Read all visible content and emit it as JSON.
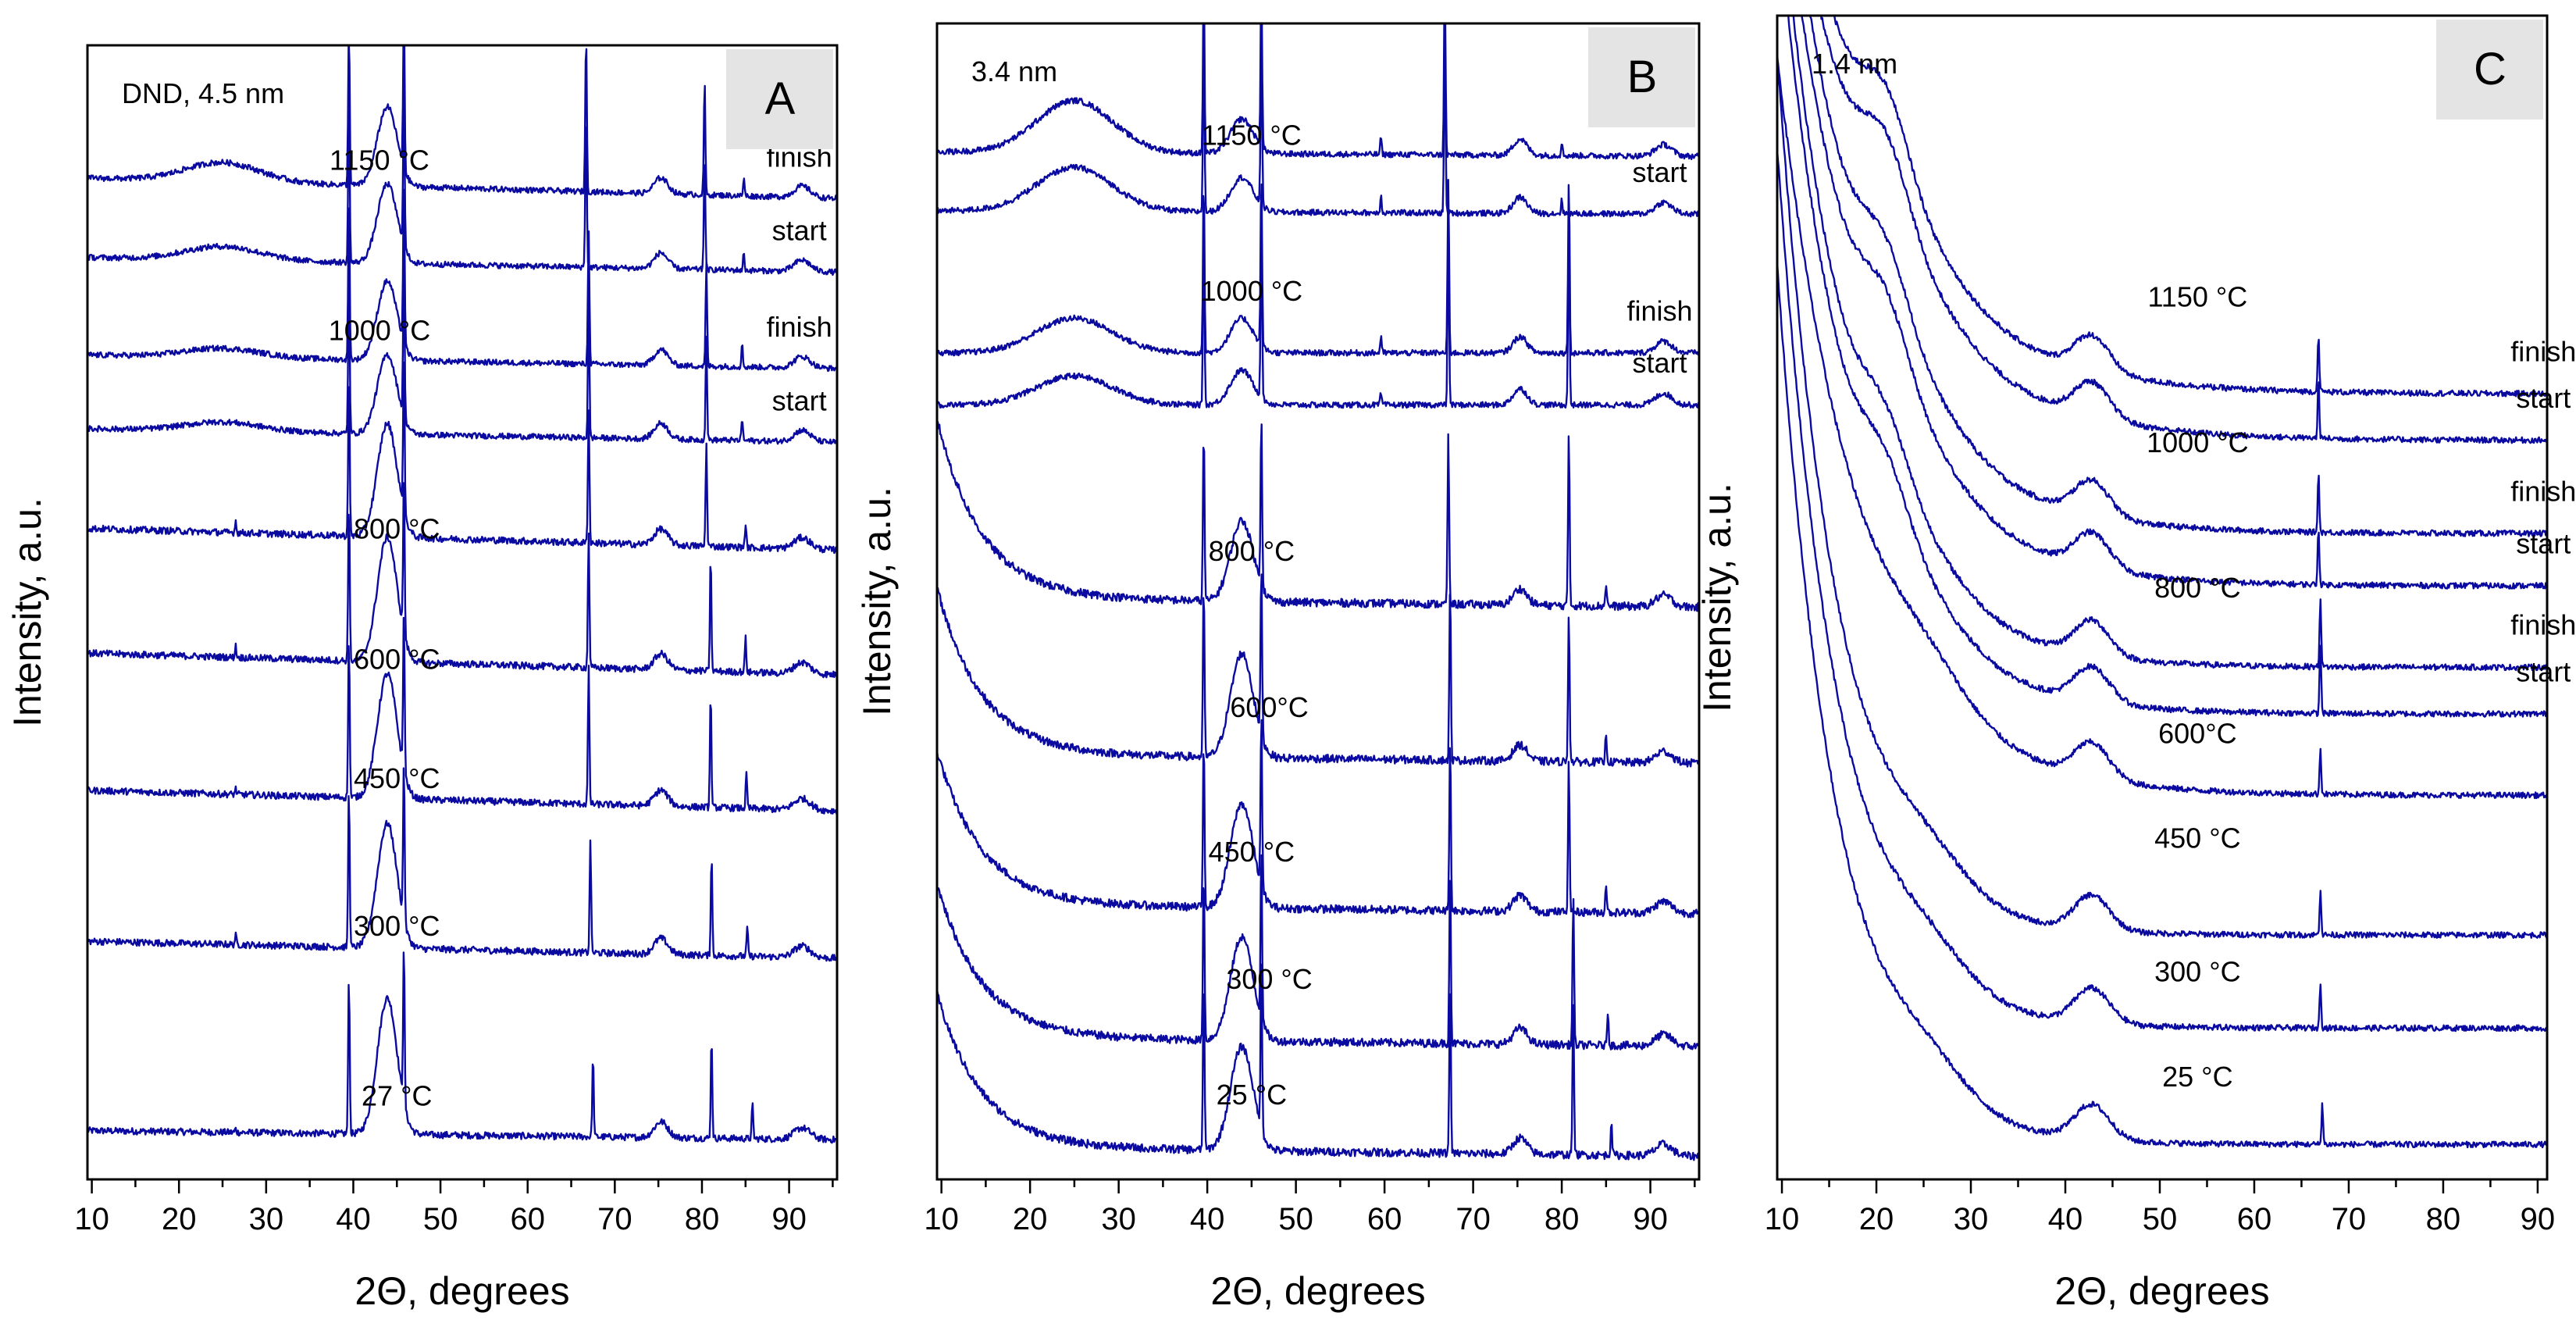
{
  "figure": {
    "caption": ""
  },
  "chart_data": [
    {
      "type": "line",
      "panel": "A",
      "sample_label": "DND, 4.5 nm",
      "xlabel": "2Θ, degrees",
      "ylabel": "Intensity, a.u.",
      "xlim": [
        9.5,
        95.5
      ],
      "xticks": [
        10,
        20,
        30,
        40,
        50,
        60,
        70,
        80,
        90
      ],
      "xtick_labels": [
        "10",
        "20",
        "30",
        "40",
        "50",
        "60",
        "70",
        "80",
        "90"
      ],
      "ylim": [
        0,
        100
      ],
      "series": [
        {
          "name": "27 °C",
          "label": "27 °C",
          "label_x": 45,
          "baseline": 3.5,
          "slope": 0.8,
          "hump": 0,
          "diamond_h": 12,
          "diamond_w": 1.6,
          "dnoise": 0.6,
          "sharp": [
            [
              39.5,
              14
            ],
            [
              45.8,
              14
            ],
            [
              67.5,
              7
            ],
            [
              81.1,
              9
            ],
            [
              85.8,
              3
            ],
            [
              26.5,
              0.3
            ]
          ]
        },
        {
          "name": "300 °C",
          "label": "300 °C",
          "label_x": 45,
          "baseline": 19.5,
          "slope": 1.5,
          "hump": 0,
          "diamond_h": 11,
          "diamond_w": 1.6,
          "dnoise": 0.6,
          "sharp": [
            [
              39.5,
              14
            ],
            [
              45.8,
              14
            ],
            [
              67.2,
              10
            ],
            [
              81.1,
              9
            ],
            [
              85.2,
              2.5
            ],
            [
              26.5,
              0.8
            ]
          ]
        },
        {
          "name": "450 °C",
          "label": "450 °C",
          "label_x": 45,
          "baseline": 32.5,
          "slope": 1.8,
          "hump": 0,
          "diamond_h": 11,
          "diamond_w": 1.6,
          "dnoise": 0.6,
          "sharp": [
            [
              39.5,
              14
            ],
            [
              45.8,
              14
            ],
            [
              67.0,
              12
            ],
            [
              81.0,
              10
            ],
            [
              85.1,
              3
            ],
            [
              26.5,
              0.5
            ]
          ]
        },
        {
          "name": "600 °C",
          "label": "600 °C",
          "label_x": 45,
          "baseline": 44.5,
          "slope": 1.9,
          "hump": 0,
          "diamond_h": 11,
          "diamond_w": 1.6,
          "dnoise": 0.6,
          "sharp": [
            [
              39.5,
              14
            ],
            [
              45.8,
              14
            ],
            [
              67.0,
              12
            ],
            [
              81.0,
              10
            ],
            [
              85.0,
              3
            ],
            [
              26.5,
              1
            ]
          ]
        },
        {
          "name": "800 °C",
          "label": "800 °C",
          "label_x": 45,
          "baseline": 55.5,
          "slope": 1.9,
          "hump": 0,
          "diamond_h": 10,
          "diamond_w": 1.6,
          "dnoise": 0.6,
          "sharp": [
            [
              39.5,
              14
            ],
            [
              45.8,
              14
            ],
            [
              67.0,
              12
            ],
            [
              80.5,
              9
            ],
            [
              85.0,
              2
            ],
            [
              26.5,
              1
            ]
          ]
        },
        {
          "name": "1000 °C start",
          "label": "start",
          "label_x": 80,
          "baseline": 65,
          "slope": 1.2,
          "hump": 0.8,
          "diamond_h": 7,
          "diamond_w": 1.6,
          "dnoise": 0.5,
          "sharp": [
            [
              39.5,
              14
            ],
            [
              45.8,
              14
            ],
            [
              67.0,
              12
            ],
            [
              80.5,
              9
            ],
            [
              84.6,
              2
            ]
          ]
        },
        {
          "name": "1000 °C finish",
          "label": "finish",
          "label_x": 80,
          "baseline": 71.5,
          "slope": 1.2,
          "hump": 0.8,
          "diamond_h": 7,
          "diamond_w": 1.6,
          "dnoise": 0.5,
          "sharp": [
            [
              39.5,
              14
            ],
            [
              45.8,
              14
            ],
            [
              67.0,
              12
            ],
            [
              80.5,
              9
            ],
            [
              84.6,
              2
            ]
          ]
        },
        {
          "name": "1150 °C start",
          "label": "start",
          "label_x": 80,
          "baseline": 80,
          "slope": 1.3,
          "hump": 1.2,
          "diamond_h": 7,
          "diamond_w": 1.6,
          "dnoise": 0.5,
          "sharp": [
            [
              39.5,
              14
            ],
            [
              45.8,
              14
            ],
            [
              66.7,
              14
            ],
            [
              80.3,
              10
            ],
            [
              84.8,
              1.5
            ]
          ]
        },
        {
          "name": "1150 °C finish",
          "label": "finish",
          "label_x": 80,
          "baseline": 86.5,
          "slope": 1.8,
          "hump": 1.7,
          "diamond_h": 7,
          "diamond_w": 1.6,
          "dnoise": 0.5,
          "sharp": [
            [
              39.5,
              14
            ],
            [
              45.8,
              14
            ],
            [
              66.7,
              14
            ],
            [
              80.3,
              10
            ],
            [
              84.8,
              1.5
            ]
          ]
        }
      ],
      "temperature_labels": [
        {
          "text": "27 °C",
          "x": 45,
          "y": 6.5
        },
        {
          "text": "300 °C",
          "x": 45,
          "y": 21.5
        },
        {
          "text": "450 °C",
          "x": 45,
          "y": 34.5
        },
        {
          "text": "600 °C",
          "x": 45,
          "y": 45
        },
        {
          "text": "800 °C",
          "x": 45,
          "y": 56.5
        },
        {
          "text": "1000 °C",
          "x": 43,
          "y": 74
        },
        {
          "text": "1150 °C",
          "x": 43,
          "y": 89
        }
      ]
    },
    {
      "type": "line",
      "panel": "B",
      "sample_label": "3.4 nm",
      "xlabel": "2Θ, degrees",
      "ylabel": "Intensity, a.u.",
      "xlim": [
        9.5,
        95.5
      ],
      "xticks": [
        10,
        20,
        30,
        40,
        50,
        60,
        70,
        80,
        90
      ],
      "xtick_labels": [
        "10",
        "20",
        "30",
        "40",
        "50",
        "60",
        "70",
        "80",
        "90"
      ],
      "ylim": [
        0,
        100
      ],
      "series": [
        {
          "name": "25 °C",
          "label": "25 °C",
          "label_x": 45,
          "baseline": 2,
          "slope": 0.8,
          "hump": 0,
          "tail_h": 12,
          "tail_w": 5,
          "diamond_h": 9,
          "diamond_w": 1.8,
          "dnoise": 0.7,
          "sharp": [
            [
              39.6,
              15
            ],
            [
              46.1,
              15
            ],
            [
              67.4,
              15
            ],
            [
              81.3,
              13
            ],
            [
              85.6,
              3
            ]
          ]
        },
        {
          "name": "300 °C",
          "label": "300 °C",
          "label_x": 45,
          "baseline": 11.5,
          "slope": 0.8,
          "hump": 0,
          "tail_h": 12,
          "tail_w": 5,
          "diamond_h": 9,
          "diamond_w": 1.8,
          "dnoise": 0.7,
          "sharp": [
            [
              39.6,
              15
            ],
            [
              46.1,
              15
            ],
            [
              67.4,
              15
            ],
            [
              81.3,
              13
            ],
            [
              85.2,
              3
            ]
          ]
        },
        {
          "name": "450 °C",
          "label": "450 °C",
          "label_x": 45,
          "baseline": 23,
          "slope": 0.8,
          "hump": 0,
          "tail_h": 12,
          "tail_w": 5,
          "diamond_h": 9,
          "diamond_w": 1.8,
          "dnoise": 0.7,
          "sharp": [
            [
              39.6,
              15
            ],
            [
              46.1,
              15
            ],
            [
              67.4,
              15
            ],
            [
              80.8,
              13
            ],
            [
              85.0,
              2.5
            ]
          ]
        },
        {
          "name": "600°C",
          "label": "600°C",
          "label_x": 45,
          "baseline": 36,
          "slope": 0.8,
          "hump": 0,
          "tail_h": 13,
          "tail_w": 5,
          "diamond_h": 9,
          "diamond_w": 1.8,
          "dnoise": 0.7,
          "sharp": [
            [
              39.6,
              15
            ],
            [
              46.1,
              15
            ],
            [
              67.4,
              15
            ],
            [
              80.8,
              13
            ],
            [
              85.0,
              2.5
            ]
          ]
        },
        {
          "name": "800 °C",
          "label": "800 °C",
          "label_x": 45,
          "baseline": 49.5,
          "slope": 0.8,
          "hump": 0,
          "tail_h": 14,
          "tail_w": 5,
          "diamond_h": 7,
          "diamond_w": 1.8,
          "dnoise": 0.7,
          "sharp": [
            [
              39.6,
              15
            ],
            [
              46.1,
              15
            ],
            [
              67.2,
              15
            ],
            [
              80.8,
              15
            ],
            [
              85.0,
              2
            ]
          ]
        },
        {
          "name": "1000 °C start",
          "label": "start",
          "label_x": 80,
          "baseline": 67,
          "slope": 0,
          "hump": 2.5,
          "tail_h": 0,
          "tail_w": 5,
          "diamond_h": 3,
          "diamond_w": 1.8,
          "dnoise": 0.5,
          "sharp": [
            [
              39.6,
              15
            ],
            [
              46.1,
              15
            ],
            [
              67.2,
              15
            ],
            [
              80.8,
              15
            ],
            [
              59.6,
              1
            ]
          ]
        },
        {
          "name": "1000 °C finish",
          "label": "finish",
          "label_x": 80,
          "baseline": 71.5,
          "slope": 0,
          "hump": 3,
          "tail_h": 0,
          "tail_w": 5,
          "diamond_h": 3,
          "diamond_w": 1.8,
          "dnoise": 0.5,
          "sharp": [
            [
              39.6,
              15
            ],
            [
              46.1,
              15
            ],
            [
              67.2,
              15
            ],
            [
              80.8,
              15
            ],
            [
              59.6,
              1.5
            ]
          ]
        },
        {
          "name": "1150 °C start",
          "label": "start",
          "label_x": 80,
          "baseline": 83.5,
          "slope": 0.3,
          "hump": 3.8,
          "tail_h": 0,
          "tail_w": 5,
          "diamond_h": 3,
          "diamond_w": 1.8,
          "dnoise": 0.5,
          "sharp": [
            [
              39.6,
              15
            ],
            [
              46.1,
              15
            ],
            [
              66.8,
              15
            ],
            [
              59.6,
              1.5
            ],
            [
              80.0,
              1.2
            ]
          ]
        },
        {
          "name": "1150 °C finish",
          "label": "finish",
          "label_x": 80,
          "baseline": 88.5,
          "slope": 0.4,
          "hump": 4.5,
          "tail_h": 0,
          "tail_w": 5,
          "diamond_h": 3,
          "diamond_w": 1.8,
          "dnoise": 0.5,
          "sharp": [
            [
              39.6,
              15
            ],
            [
              46.1,
              15
            ],
            [
              66.8,
              15
            ],
            [
              59.6,
              1.5
            ],
            [
              80.0,
              1.2
            ]
          ]
        }
      ],
      "temperature_labels": [
        {
          "text": "25 °C",
          "x": 45,
          "y": 6.5
        },
        {
          "text": "300 °C",
          "x": 47,
          "y": 16.5
        },
        {
          "text": "450 °C",
          "x": 45,
          "y": 27.5
        },
        {
          "text": "600°C",
          "x": 47,
          "y": 40
        },
        {
          "text": "800 °C",
          "x": 45,
          "y": 53.5
        },
        {
          "text": "1000 °C",
          "x": 45,
          "y": 76
        },
        {
          "text": "1150 °C",
          "x": 45,
          "y": 89.5
        }
      ]
    },
    {
      "type": "line",
      "panel": "C",
      "sample_label": "1.4 nm",
      "xlabel": "2Θ, degrees",
      "ylabel": "Intensity, a.u.",
      "xlim": [
        9.5,
        91
      ],
      "xticks": [
        10,
        20,
        30,
        40,
        50,
        60,
        70,
        80,
        90
      ],
      "xtick_labels": [
        "10",
        "20",
        "30",
        "40",
        "50",
        "60",
        "70",
        "80",
        "90"
      ],
      "ylim": [
        0,
        100
      ],
      "series": [
        {
          "name": "25 °C",
          "label": "25 °C",
          "label_x": 50,
          "baseline": 3,
          "slope": 0,
          "hump": 3,
          "tail_h": 70,
          "tail_w": 6.5,
          "diamond_h": 0,
          "diamond_w": 2,
          "dnoise": 0.5,
          "sharp": [
            [
              67.2,
              3.5
            ]
          ]
        },
        {
          "name": "300 °C",
          "label": "300 °C",
          "label_x": 50,
          "baseline": 13,
          "slope": 0,
          "hump": 3,
          "tail_h": 70,
          "tail_w": 6.5,
          "diamond_h": 0,
          "diamond_w": 2,
          "dnoise": 0.5,
          "sharp": [
            [
              67.0,
              4
            ]
          ]
        },
        {
          "name": "450 °C",
          "label": "450 °C",
          "label_x": 50,
          "baseline": 21,
          "slope": 0,
          "hump": 3,
          "tail_h": 70,
          "tail_w": 6.5,
          "diamond_h": 0,
          "diamond_w": 2,
          "dnoise": 0.5,
          "sharp": [
            [
              67.0,
              4
            ]
          ]
        },
        {
          "name": "600°C",
          "label": "600°C",
          "label_x": 50,
          "baseline": 33,
          "slope": 0,
          "hump": 3,
          "tail_h": 60,
          "tail_w": 9,
          "diamond_h": 0,
          "diamond_w": 2,
          "dnoise": 0.5,
          "sharp": [
            [
              67.0,
              4
            ]
          ]
        },
        {
          "name": "800 °C start",
          "label": "start",
          "label_x": 80,
          "baseline": 40,
          "slope": 0,
          "hump": 2,
          "tail_h": 65,
          "tail_w": 8,
          "shoulder": 5,
          "diamond_h": 0,
          "diamond_w": 2,
          "dnoise": 0.5,
          "sharp": [
            [
              67.0,
              6
            ]
          ]
        },
        {
          "name": "800 °C finish",
          "label": "finish",
          "label_x": 80,
          "baseline": 44,
          "slope": 0,
          "hump": 2,
          "tail_h": 65,
          "tail_w": 8,
          "shoulder": 5,
          "diamond_h": 0,
          "diamond_w": 2,
          "dnoise": 0.5,
          "sharp": [
            [
              67.0,
              6
            ]
          ]
        },
        {
          "name": "1000 °C start",
          "label": "start",
          "label_x": 80,
          "baseline": 51,
          "slope": 0,
          "hump": 2,
          "tail_h": 62,
          "tail_w": 9,
          "shoulder": 6,
          "diamond_h": 0,
          "diamond_w": 2,
          "dnoise": 0.5,
          "sharp": [
            [
              66.8,
              5
            ]
          ]
        },
        {
          "name": "1000 °C finish",
          "label": "finish",
          "label_x": 80,
          "baseline": 55.5,
          "slope": 0,
          "hump": 2,
          "tail_h": 62,
          "tail_w": 9,
          "shoulder": 6,
          "diamond_h": 0,
          "diamond_w": 2,
          "dnoise": 0.5,
          "sharp": [
            [
              66.8,
              5
            ]
          ]
        },
        {
          "name": "1150 °C start",
          "label": "start",
          "label_x": 80,
          "baseline": 63.5,
          "slope": 0,
          "hump": 2,
          "tail_h": 55,
          "tail_w": 10,
          "shoulder": 7,
          "diamond_h": 0,
          "diamond_w": 2,
          "dnoise": 0.5,
          "sharp": [
            [
              66.8,
              5
            ]
          ]
        },
        {
          "name": "1150 °C finish",
          "label": "finish",
          "label_x": 80,
          "baseline": 67.5,
          "slope": 0,
          "hump": 2,
          "tail_h": 55,
          "tail_w": 10,
          "shoulder": 7,
          "diamond_h": 0,
          "diamond_w": 2,
          "dnoise": 0.5,
          "sharp": [
            [
              66.8,
              5
            ]
          ]
        }
      ],
      "temperature_labels": [
        {
          "text": "25 °C",
          "x": 54,
          "y": 8
        },
        {
          "text": "300 °C",
          "x": 54,
          "y": 17
        },
        {
          "text": "450 °C",
          "x": 54,
          "y": 28.5
        },
        {
          "text": "600°C",
          "x": 54,
          "y": 37.5
        },
        {
          "text": "800 °C",
          "x": 54,
          "y": 50
        },
        {
          "text": "1000 °C",
          "x": 54,
          "y": 62.5
        },
        {
          "text": "1150 °C",
          "x": 54,
          "y": 75
        }
      ]
    }
  ]
}
